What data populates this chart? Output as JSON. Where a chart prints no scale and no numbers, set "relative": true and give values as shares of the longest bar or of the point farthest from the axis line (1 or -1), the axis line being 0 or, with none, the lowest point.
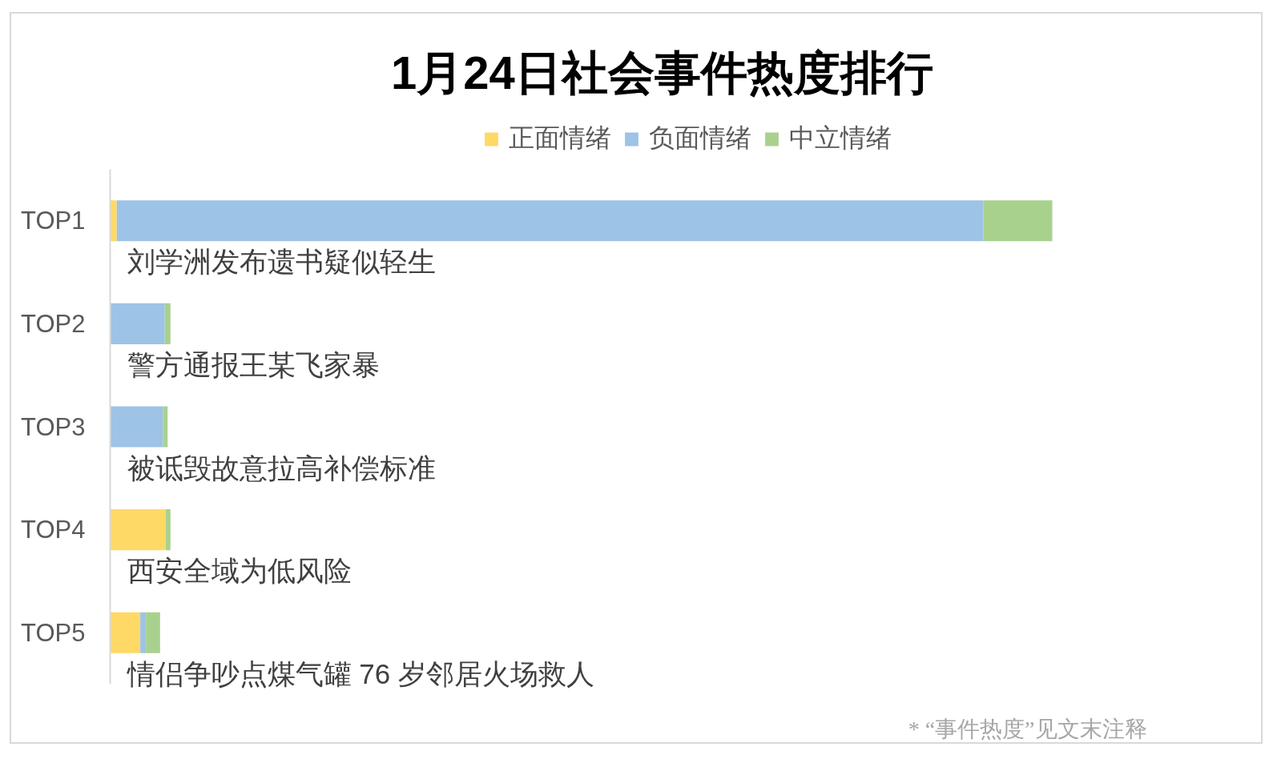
{
  "chart_data": {
    "type": "bar",
    "orientation": "horizontal",
    "stacked": true,
    "relative": true,
    "title": "1月24日社会事件热度排行",
    "categories": [
      "TOP1",
      "TOP2",
      "TOP3",
      "TOP4",
      "TOP5"
    ],
    "series": [
      {
        "name": "正面情绪",
        "color": "#ffd966",
        "values": [
          0.007,
          0,
          0,
          0.059,
          0.032
        ]
      },
      {
        "name": "负面情绪",
        "color": "#9dc3e6",
        "values": [
          0.92,
          0.058,
          0.056,
          0,
          0.006
        ]
      },
      {
        "name": "中立情绪",
        "color": "#a9d18e",
        "values": [
          0.073,
          0.006,
          0.005,
          0.005,
          0.015
        ]
      }
    ],
    "annotations": [
      "刘学洲发布遗书疑似轻生",
      "警方通报王某飞家暴",
      "被诋毁故意拉高补偿标准",
      "西安全域为低风险",
      "情侣争吵点煤气罐 76 岁邻居火场救人",
      "* “事件热度”见文末注释"
    ],
    "legend": "top",
    "grid": false
  }
}
